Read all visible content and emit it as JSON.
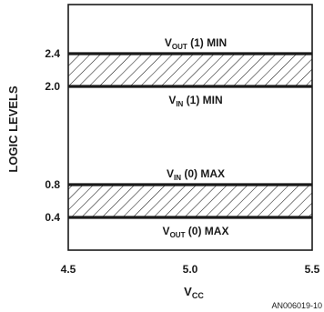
{
  "chart_data": {
    "type": "area",
    "xlabel_main": "V",
    "xlabel_sub": "CC",
    "ylabel": "LOGIC LEVELS",
    "xlim": [
      4.5,
      5.5
    ],
    "ylim": [
      0,
      3.0
    ],
    "x_ticks": [
      {
        "value": 4.5,
        "label": "4.5"
      },
      {
        "value": 5.0,
        "label": "5.0"
      },
      {
        "value": 5.5,
        "label": "5.5"
      }
    ],
    "y_ticks": [
      {
        "value": 0.4,
        "label": "0.4"
      },
      {
        "value": 0.8,
        "label": "0.8"
      },
      {
        "value": 2.0,
        "label": "2.0"
      },
      {
        "value": 2.4,
        "label": "2.4"
      }
    ],
    "bands": [
      {
        "y_low": 2.0,
        "y_high": 2.4,
        "fill": "hatched"
      },
      {
        "y_low": 0.4,
        "y_high": 0.8,
        "fill": "hatched"
      }
    ],
    "level_labels": [
      {
        "y": 2.4,
        "pos": "above",
        "main": "V",
        "sub": "OUT",
        "rest": " (1) MIN"
      },
      {
        "y": 2.0,
        "pos": "below",
        "main": "V",
        "sub": "IN",
        "rest": " (1) MIN"
      },
      {
        "y": 0.8,
        "pos": "above",
        "main": "V",
        "sub": "IN",
        "rest": " (0) MAX"
      },
      {
        "y": 0.4,
        "pos": "below",
        "main": "V",
        "sub": "OUT",
        "rest": " (0) MAX"
      }
    ],
    "footnote": "AN006019-10",
    "grid": false,
    "colors": {
      "ink": "#1a1a1a",
      "background": "#ffffff"
    }
  }
}
